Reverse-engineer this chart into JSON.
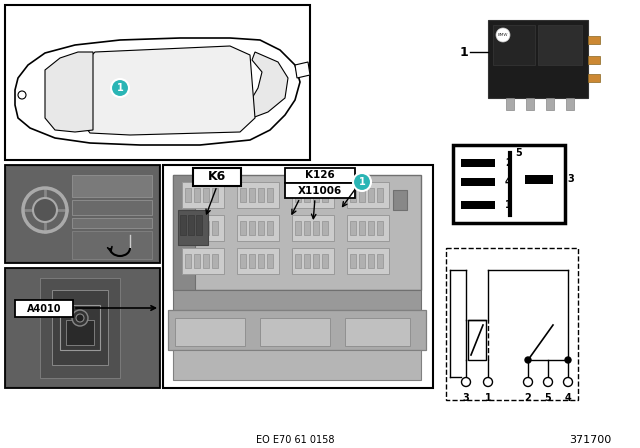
{
  "bg_color": "#ffffff",
  "teal_color": "#2ab5b5",
  "eo_text": "EO E70 61 0158",
  "ref_number": "371700",
  "pin_labels_bottom": [
    "3",
    "1",
    "2",
    "5",
    "4"
  ],
  "k6_label": "K6",
  "k126_label": "K126",
  "x11006_label": "X11006",
  "a4010_label": "A4010",
  "item_number": "1"
}
